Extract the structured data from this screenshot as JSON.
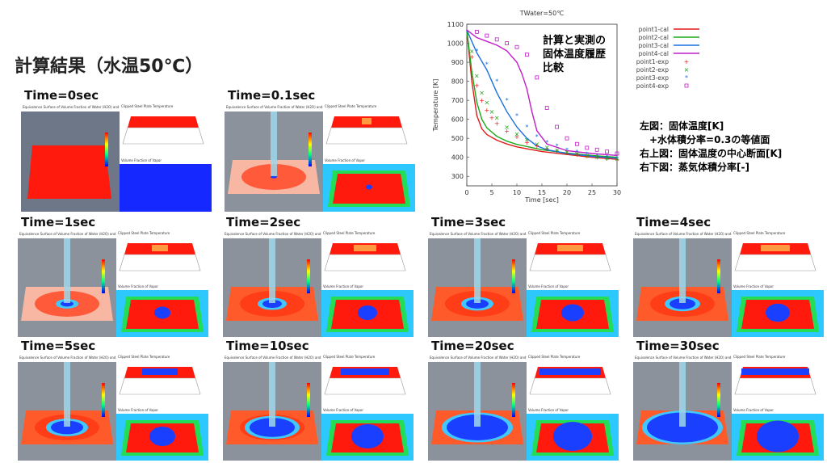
{
  "heading": "計算結果（水温50℃）",
  "panels": [
    {
      "time_label": "Time=0sec",
      "stage": 0
    },
    {
      "time_label": "Time=0.1sec",
      "stage": 1
    },
    {
      "time_label": "Time=1sec",
      "stage": 2
    },
    {
      "time_label": "Time=2sec",
      "stage": 3
    },
    {
      "time_label": "Time=3sec",
      "stage": 4
    },
    {
      "time_label": "Time=4sec",
      "stage": 5
    },
    {
      "time_label": "Time=5sec",
      "stage": 6
    },
    {
      "time_label": "Time=10sec",
      "stage": 7
    },
    {
      "time_label": "Time=20sec",
      "stage": 8
    },
    {
      "time_label": "Time=30sec",
      "stage": 9
    }
  ],
  "panel_sublabels": {
    "iso": "Equivalence Surface of Volume Fraction of Water (H2O) and Steel Plate Temperature",
    "clip": "Clipped Steel Plate Temperature",
    "vapor": "Volume Fraction of Vapor"
  },
  "chart_note": [
    "計算と実測の",
    "固体温度履歴",
    "比較"
  ],
  "legend_note": [
    "左図：固体温度[K]",
    "　+水体積分率=0.3の等値面",
    "右上図：固体温度の中心断面[K]",
    "右下図：蒸気体積分率[-]"
  ],
  "colors": {
    "hot": "#ff1a0d",
    "mid": "#ff7a3a",
    "cool": "#1b3fff",
    "pale": "#f7b7a3",
    "bg": "#3a3f47"
  },
  "chart_data": {
    "type": "line",
    "title": "TWater=50℃",
    "xlabel": "Time [sec]",
    "ylabel": "Temperature [K]",
    "xlim": [
      0,
      30
    ],
    "ylim": [
      250,
      1100
    ],
    "xticks": [
      0,
      5,
      10,
      15,
      20,
      25,
      30
    ],
    "yticks": [
      300,
      400,
      500,
      600,
      700,
      800,
      900,
      1000,
      1100
    ],
    "legend_position": "right",
    "series": [
      {
        "name": "point1-cal",
        "color": "#e21b1b",
        "kind": "line",
        "x": [
          0,
          1,
          2,
          3,
          4,
          6,
          8,
          10,
          15,
          20,
          25,
          30
        ],
        "y": [
          1070,
          800,
          620,
          550,
          520,
          490,
          470,
          455,
          430,
          415,
          400,
          390
        ]
      },
      {
        "name": "point2-cal",
        "color": "#1aa81a",
        "kind": "line",
        "x": [
          0,
          1,
          2,
          3,
          4,
          6,
          8,
          10,
          15,
          20,
          25,
          30
        ],
        "y": [
          1070,
          850,
          690,
          600,
          555,
          510,
          485,
          468,
          440,
          422,
          410,
          400
        ]
      },
      {
        "name": "point3-cal",
        "color": "#1b6fe2",
        "kind": "line",
        "x": [
          0,
          2,
          4,
          6,
          8,
          10,
          12,
          14,
          16,
          20,
          25,
          30
        ],
        "y": [
          1070,
          950,
          860,
          740,
          640,
          560,
          500,
          460,
          440,
          420,
          405,
          395
        ]
      },
      {
        "name": "point4-cal",
        "color": "#c01cc8",
        "kind": "line",
        "x": [
          0,
          2,
          4,
          6,
          8,
          10,
          11,
          12,
          13,
          14,
          16,
          20,
          25,
          30
        ],
        "y": [
          1070,
          1030,
          1010,
          990,
          960,
          900,
          840,
          760,
          640,
          540,
          470,
          435,
          420,
          410
        ]
      },
      {
        "name": "point1-exp",
        "color": "#e21b1b",
        "kind": "marker",
        "symbol": "+",
        "x": [
          1,
          2,
          3,
          4,
          5,
          6,
          8,
          10,
          12,
          14,
          16,
          18,
          20,
          22,
          24,
          26,
          28,
          30
        ],
        "y": [
          930,
          780,
          700,
          650,
          610,
          580,
          540,
          510,
          480,
          460,
          445,
          435,
          425,
          415,
          408,
          400,
          395,
          390
        ]
      },
      {
        "name": "point2-exp",
        "color": "#1aa81a",
        "kind": "marker",
        "symbol": "x",
        "x": [
          1,
          2,
          3,
          4,
          5,
          6,
          8,
          10,
          12,
          14,
          16,
          18,
          20,
          22,
          24,
          26,
          28,
          30
        ],
        "y": [
          960,
          830,
          740,
          690,
          640,
          610,
          560,
          525,
          495,
          470,
          455,
          440,
          428,
          420,
          410,
          402,
          396,
          392
        ]
      },
      {
        "name": "point3-exp",
        "color": "#1b6fe2",
        "kind": "marker",
        "symbol": "*",
        "x": [
          2,
          4,
          6,
          8,
          10,
          12,
          14,
          16,
          18,
          20,
          22,
          24,
          26,
          28,
          30
        ],
        "y": [
          960,
          890,
          800,
          700,
          620,
          560,
          510,
          480,
          460,
          440,
          428,
          418,
          410,
          402,
          395
        ]
      },
      {
        "name": "point4-exp",
        "color": "#c01cc8",
        "kind": "marker",
        "symbol": "square",
        "x": [
          2,
          4,
          6,
          8,
          10,
          12,
          14,
          16,
          18,
          20,
          22,
          24,
          26,
          28,
          30
        ],
        "y": [
          1060,
          1040,
          1020,
          1000,
          980,
          940,
          820,
          660,
          560,
          500,
          470,
          450,
          440,
          430,
          420
        ]
      }
    ]
  }
}
